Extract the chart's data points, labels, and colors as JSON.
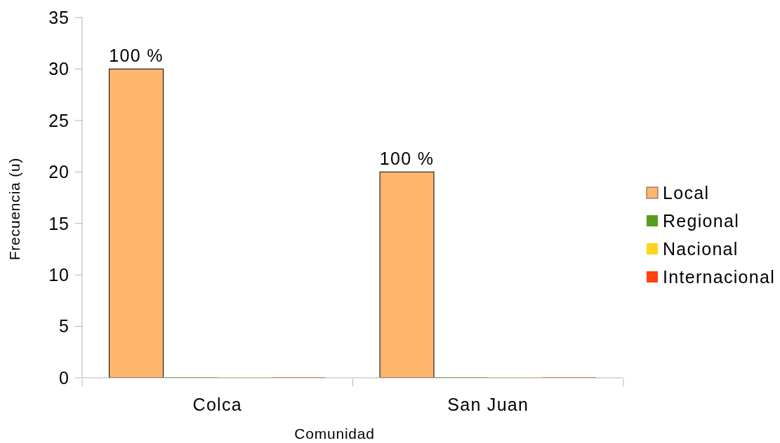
{
  "chart_data": {
    "type": "bar",
    "categories": [
      "Colca",
      "San Juan"
    ],
    "xlabel": "Comunidad",
    "ylabel": "Frecuencia (u)",
    "ylim": [
      0,
      35
    ],
    "yticks": [
      0,
      5,
      10,
      15,
      20,
      25,
      30,
      35
    ],
    "legend": "right",
    "series": [
      {
        "name": "Local",
        "color": "#ffb66c",
        "values": [
          30,
          20
        ]
      },
      {
        "name": "Regional",
        "color": "#579d1c",
        "values": [
          0,
          0
        ]
      },
      {
        "name": "Nacional",
        "color": "#ffd320",
        "values": [
          0,
          0
        ]
      },
      {
        "name": "Internacional",
        "color": "#ff420e",
        "values": [
          0,
          0
        ]
      }
    ],
    "annotations": [
      "100 %",
      "100 %"
    ]
  }
}
